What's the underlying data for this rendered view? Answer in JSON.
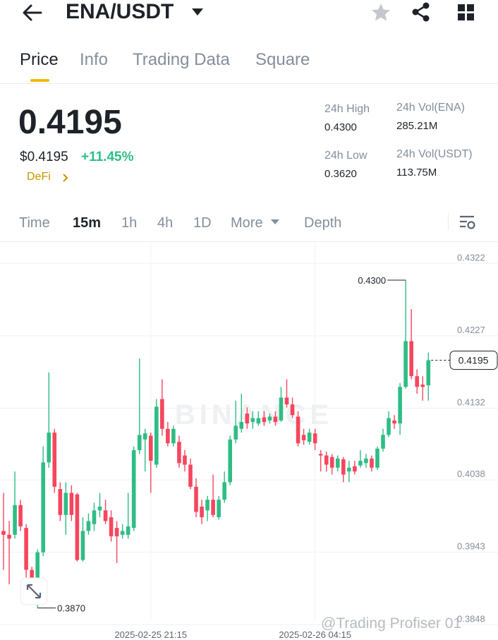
{
  "header": {
    "pair": "ENA/USDT"
  },
  "tabs": [
    "Price",
    "Info",
    "Trading Data",
    "Square"
  ],
  "ticker": {
    "price": "0.4195",
    "fiat_price": "$0.4195",
    "change": "+11.45%",
    "tag": "DeFi"
  },
  "stats": [
    {
      "label": "24h High",
      "value": "0.4300"
    },
    {
      "label": "24h Vol(ENA)",
      "value": "285.21M"
    },
    {
      "label": "24h Low",
      "value": "0.3620"
    },
    {
      "label": "24h Vol(USDT)",
      "value": "113.75M"
    }
  ],
  "intervals": [
    "Time",
    "15m",
    "1h",
    "4h",
    "1D",
    "More",
    "Depth"
  ],
  "overlay_watermark": "@Trading Profiser 01",
  "chart_data": {
    "type": "candlestick",
    "watermark": "BINANCE",
    "up_color": "#2ebd85",
    "down_color": "#f6465d",
    "ylim": [
      0.3828,
      0.435
    ],
    "yticks": [
      0.4322,
      0.4227,
      0.4132,
      0.4038,
      0.3943,
      0.3848
    ],
    "grid": true,
    "high_label": "0.4300",
    "low_label": "0.3870",
    "last_label": "0.4195",
    "categories": [
      null,
      null,
      null,
      null,
      null,
      null,
      null,
      null,
      null,
      null,
      null,
      null,
      null,
      null,
      null,
      null,
      null,
      null,
      null,
      null,
      null,
      null,
      null,
      null,
      null,
      null,
      "2025-02-25 21:15",
      null,
      null,
      null,
      null,
      null,
      null,
      null,
      null,
      null,
      null,
      null,
      null,
      null,
      null,
      null,
      null,
      null,
      null,
      null,
      null,
      null,
      null,
      null,
      null,
      null,
      null,
      null,
      null,
      "2025-02-26 04:15",
      null,
      null,
      null,
      null,
      null,
      null,
      null,
      null,
      null,
      null,
      null,
      null,
      null,
      null,
      null,
      null,
      null,
      null,
      null,
      null
    ],
    "open": [
      0.3971,
      0.3966,
      0.3966,
      0.4005,
      0.3975,
      0.392,
      0.3894,
      0.3943,
      0.4061,
      0.41,
      0.4026,
      0.3992,
      0.4021,
      0.4019,
      0.3933,
      0.3971,
      0.398,
      0.3998,
      0.3998,
      0.3989,
      0.3975,
      0.3966,
      0.3966,
      0.3975,
      0.4077,
      0.4091,
      0.4096,
      0.4058,
      0.4144,
      0.4105,
      0.4086,
      0.4088,
      0.407,
      0.4058,
      0.4029,
      0.4003,
      0.3998,
      0.4012,
      0.3989,
      0.4012,
      0.4035,
      0.4091,
      0.4105,
      0.4125,
      0.4114,
      0.4112,
      0.412,
      0.4116,
      0.4121,
      0.4116,
      0.4146,
      0.4137,
      0.4121,
      0.4097,
      0.4088,
      0.4099,
      0.4072,
      0.407,
      0.4068,
      0.4054,
      0.4065,
      0.4049,
      0.4056,
      0.4057,
      0.406,
      0.4066,
      0.4054,
      0.4079,
      0.4097,
      0.4116,
      0.4112,
      0.416,
      0.422,
      0.4174,
      0.4163,
      0.4162
    ],
    "high": [
      0.4021,
      0.3984,
      0.4049,
      0.4012,
      0.398,
      0.3924,
      0.3947,
      0.4082,
      0.4179,
      0.4105,
      0.4035,
      0.4035,
      0.4031,
      0.4021,
      0.3989,
      0.3994,
      0.4008,
      0.4021,
      0.4012,
      0.3998,
      0.3984,
      0.398,
      0.4021,
      0.4082,
      0.4197,
      0.4105,
      0.41,
      0.4144,
      0.417,
      0.4114,
      0.4109,
      0.4096,
      0.4077,
      0.4066,
      0.404,
      0.4012,
      0.4017,
      0.4045,
      0.4017,
      0.4049,
      0.4096,
      0.4142,
      0.4151,
      0.4133,
      0.4128,
      0.4128,
      0.4128,
      0.4125,
      0.4128,
      0.416,
      0.417,
      0.4146,
      0.4128,
      0.4105,
      0.4105,
      0.4105,
      0.4077,
      0.4075,
      0.4072,
      0.407,
      0.4068,
      0.4063,
      0.4063,
      0.4077,
      0.4072,
      0.407,
      0.4082,
      0.4105,
      0.4128,
      0.4123,
      0.4165,
      0.43,
      0.4262,
      0.4183,
      0.4174,
      0.4205
    ],
    "low": [
      0.392,
      0.3901,
      0.3961,
      0.3971,
      0.391,
      0.3883,
      0.387,
      0.3938,
      0.4054,
      0.4021,
      0.3984,
      0.3966,
      0.3984,
      0.3931,
      0.3931,
      0.3966,
      0.3971,
      0.3989,
      0.398,
      0.3957,
      0.3929,
      0.3961,
      0.3961,
      0.3971,
      0.4072,
      0.4049,
      0.4021,
      0.4054,
      0.4096,
      0.4082,
      0.4082,
      0.4054,
      0.4049,
      0.4026,
      0.3989,
      0.398,
      0.3984,
      0.3989,
      0.3986,
      0.4008,
      0.4031,
      0.4086,
      0.41,
      0.4105,
      0.4105,
      0.4109,
      0.4109,
      0.4112,
      0.4109,
      0.4114,
      0.4133,
      0.4119,
      0.4082,
      0.4084,
      0.4084,
      0.4077,
      0.4049,
      0.4049,
      0.4045,
      0.4049,
      0.4035,
      0.4035,
      0.4045,
      0.4054,
      0.4054,
      0.4049,
      0.4051,
      0.4075,
      0.4094,
      0.4105,
      0.4097,
      0.4158,
      0.417,
      0.4151,
      0.4142,
      0.4142
    ],
    "close": [
      0.3966,
      0.3961,
      0.4005,
      0.3977,
      0.392,
      0.3896,
      0.3943,
      0.4061,
      0.41,
      0.4029,
      0.3992,
      0.4021,
      0.3992,
      0.3933,
      0.3971,
      0.3984,
      0.3998,
      0.4003,
      0.3984,
      0.3964,
      0.3964,
      0.3971,
      0.3977,
      0.4077,
      0.4097,
      0.4099,
      0.4063,
      0.4134,
      0.4105,
      0.4086,
      0.4105,
      0.406,
      0.4058,
      0.4029,
      0.3996,
      0.3989,
      0.4012,
      0.3992,
      0.4012,
      0.4035,
      0.4091,
      0.4109,
      0.4114,
      0.4112,
      0.4119,
      0.4119,
      0.4114,
      0.4121,
      0.4114,
      0.4146,
      0.4137,
      0.4123,
      0.4086,
      0.409,
      0.41,
      0.4086,
      0.407,
      0.4058,
      0.4054,
      0.4066,
      0.4045,
      0.4054,
      0.4049,
      0.4063,
      0.4066,
      0.4054,
      0.4079,
      0.4097,
      0.4119,
      0.4112,
      0.416,
      0.422,
      0.4174,
      0.416,
      0.416,
      0.4195
    ]
  }
}
